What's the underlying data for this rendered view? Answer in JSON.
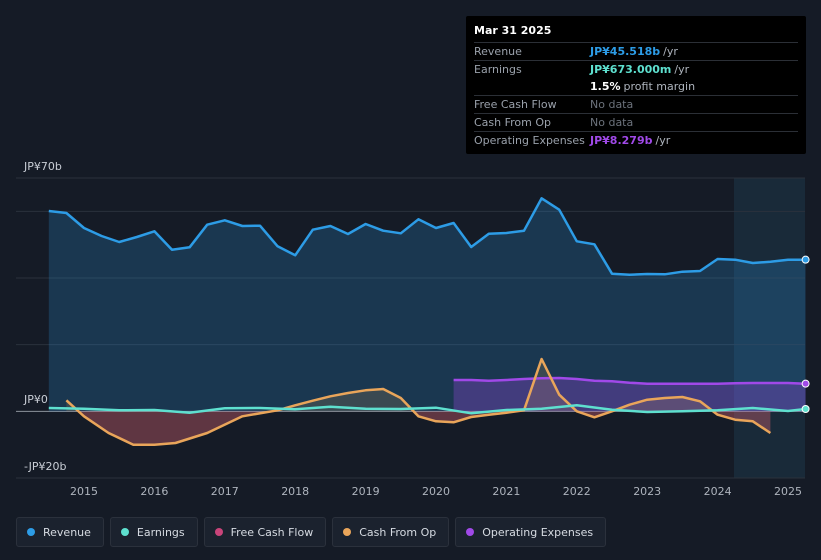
{
  "tooltip": {
    "date": "Mar 31 2025",
    "revenue": {
      "label": "Revenue",
      "value": "JP¥45.518b",
      "unit": "/yr"
    },
    "earnings": {
      "label": "Earnings",
      "value": "JP¥673.000m",
      "unit": "/yr"
    },
    "margin": {
      "value": "1.5%",
      "text": "profit margin"
    },
    "fcf": {
      "label": "Free Cash Flow",
      "value": "No data"
    },
    "cfo": {
      "label": "Cash From Op",
      "value": "No data"
    },
    "opex": {
      "label": "Operating Expenses",
      "value": "JP¥8.279b",
      "unit": "/yr"
    }
  },
  "colors": {
    "revenue": "#2d9ce6",
    "earnings": "#5ee0cf",
    "fcf": "#c9447a",
    "cfo": "#e9a55a",
    "opex": "#a049e8"
  },
  "legend": {
    "revenue": "Revenue",
    "earnings": "Earnings",
    "fcf": "Free Cash Flow",
    "cfo": "Cash From Op",
    "opex": "Operating Expenses"
  },
  "chart_data": {
    "type": "line",
    "title": "",
    "xlabel": "",
    "ylabel": "",
    "unit": "JP¥ billions",
    "y_axis_labels": {
      "top": "JP¥70b",
      "zero": "JP¥0",
      "bottom": "-JP¥20b"
    },
    "ylim": [
      -20,
      70
    ],
    "xlim": [
      2014.2,
      2025.3
    ],
    "x_ticks": [
      "2015",
      "2016",
      "2017",
      "2018",
      "2019",
      "2020",
      "2021",
      "2022",
      "2023",
      "2024",
      "2025"
    ],
    "series": [
      {
        "name": "Revenue",
        "x": [
          2014.5,
          2014.75,
          2015.0,
          2015.25,
          2015.5,
          2015.75,
          2016.0,
          2016.25,
          2016.5,
          2016.75,
          2017.0,
          2017.25,
          2017.5,
          2017.75,
          2018.0,
          2018.25,
          2018.5,
          2018.75,
          2019.0,
          2019.25,
          2019.5,
          2019.75,
          2020.0,
          2020.25,
          2020.5,
          2020.75,
          2021.0,
          2021.25,
          2021.5,
          2021.75,
          2022.0,
          2022.25,
          2022.5,
          2022.75,
          2023.0,
          2023.25,
          2023.5,
          2023.75,
          2024.0,
          2024.25,
          2024.5,
          2024.75,
          2025.0,
          2025.25
        ],
        "values": [
          60.1,
          59.5,
          55.0,
          52.6,
          50.8,
          52.3,
          54.0,
          48.5,
          49.2,
          56.0,
          57.3,
          55.6,
          55.7,
          49.5,
          46.8,
          54.5,
          55.6,
          53.2,
          56.2,
          54.2,
          53.4,
          57.6,
          55.0,
          56.5,
          49.3,
          53.3,
          53.5,
          54.2,
          63.9,
          60.5,
          51.0,
          50.1,
          41.3,
          41.0,
          41.2,
          41.1,
          41.9,
          42.1,
          45.7,
          45.5,
          44.5,
          44.9,
          45.5,
          45.5
        ]
      },
      {
        "name": "Earnings",
        "x": [
          2014.5,
          2015.0,
          2015.5,
          2016.0,
          2016.5,
          2017.0,
          2017.5,
          2018.0,
          2018.5,
          2019.0,
          2019.5,
          2020.0,
          2020.5,
          2021.0,
          2021.5,
          2022.0,
          2022.5,
          2023.0,
          2023.5,
          2024.0,
          2024.5,
          2025.0,
          2025.25
        ],
        "values": [
          1.0,
          0.8,
          0.3,
          0.4,
          -0.4,
          0.9,
          1.0,
          0.6,
          1.4,
          0.8,
          0.7,
          1.1,
          -0.6,
          0.4,
          0.8,
          1.8,
          0.5,
          -0.2,
          0.0,
          0.3,
          1.0,
          0.1,
          0.7
        ]
      },
      {
        "name": "Cash From Op",
        "x": [
          2014.75,
          2015.0,
          2015.35,
          2015.7,
          2016.0,
          2016.3,
          2016.75,
          2017.25,
          2017.75,
          2018.0,
          2018.25,
          2018.5,
          2018.75,
          2019.0,
          2019.25,
          2019.5,
          2019.75,
          2020.0,
          2020.25,
          2020.5,
          2020.75,
          2021.0,
          2021.25,
          2021.5,
          2021.75,
          2022.0,
          2022.25,
          2022.5,
          2022.75,
          2023.0,
          2023.25,
          2023.5,
          2023.75,
          2024.0,
          2024.25,
          2024.5,
          2024.75
        ],
        "values": [
          3.3,
          -1.5,
          -6.5,
          -10.0,
          -10.0,
          -9.5,
          -6.5,
          -1.5,
          0.3,
          1.8,
          3.2,
          4.5,
          5.5,
          6.3,
          6.7,
          4.0,
          -1.5,
          -3.0,
          -3.3,
          -1.7,
          -1.0,
          -0.4,
          0.3,
          15.7,
          5.0,
          0.0,
          -1.8,
          0.0,
          2.0,
          3.5,
          4.0,
          4.3,
          3.0,
          -1.0,
          -2.5,
          -3.0,
          -6.5
        ]
      },
      {
        "name": "Operating Expenses",
        "x": [
          2020.25,
          2020.5,
          2020.75,
          2021.0,
          2021.25,
          2021.5,
          2021.75,
          2022.0,
          2022.25,
          2022.5,
          2022.75,
          2023.0,
          2023.25,
          2023.5,
          2023.75,
          2024.0,
          2024.25,
          2024.5,
          2024.75,
          2025.0,
          2025.25
        ],
        "values": [
          9.4,
          9.4,
          9.2,
          9.4,
          9.7,
          9.9,
          10.0,
          9.7,
          9.2,
          9.0,
          8.6,
          8.3,
          8.3,
          8.3,
          8.3,
          8.3,
          8.4,
          8.5,
          8.5,
          8.5,
          8.3
        ]
      }
    ]
  }
}
